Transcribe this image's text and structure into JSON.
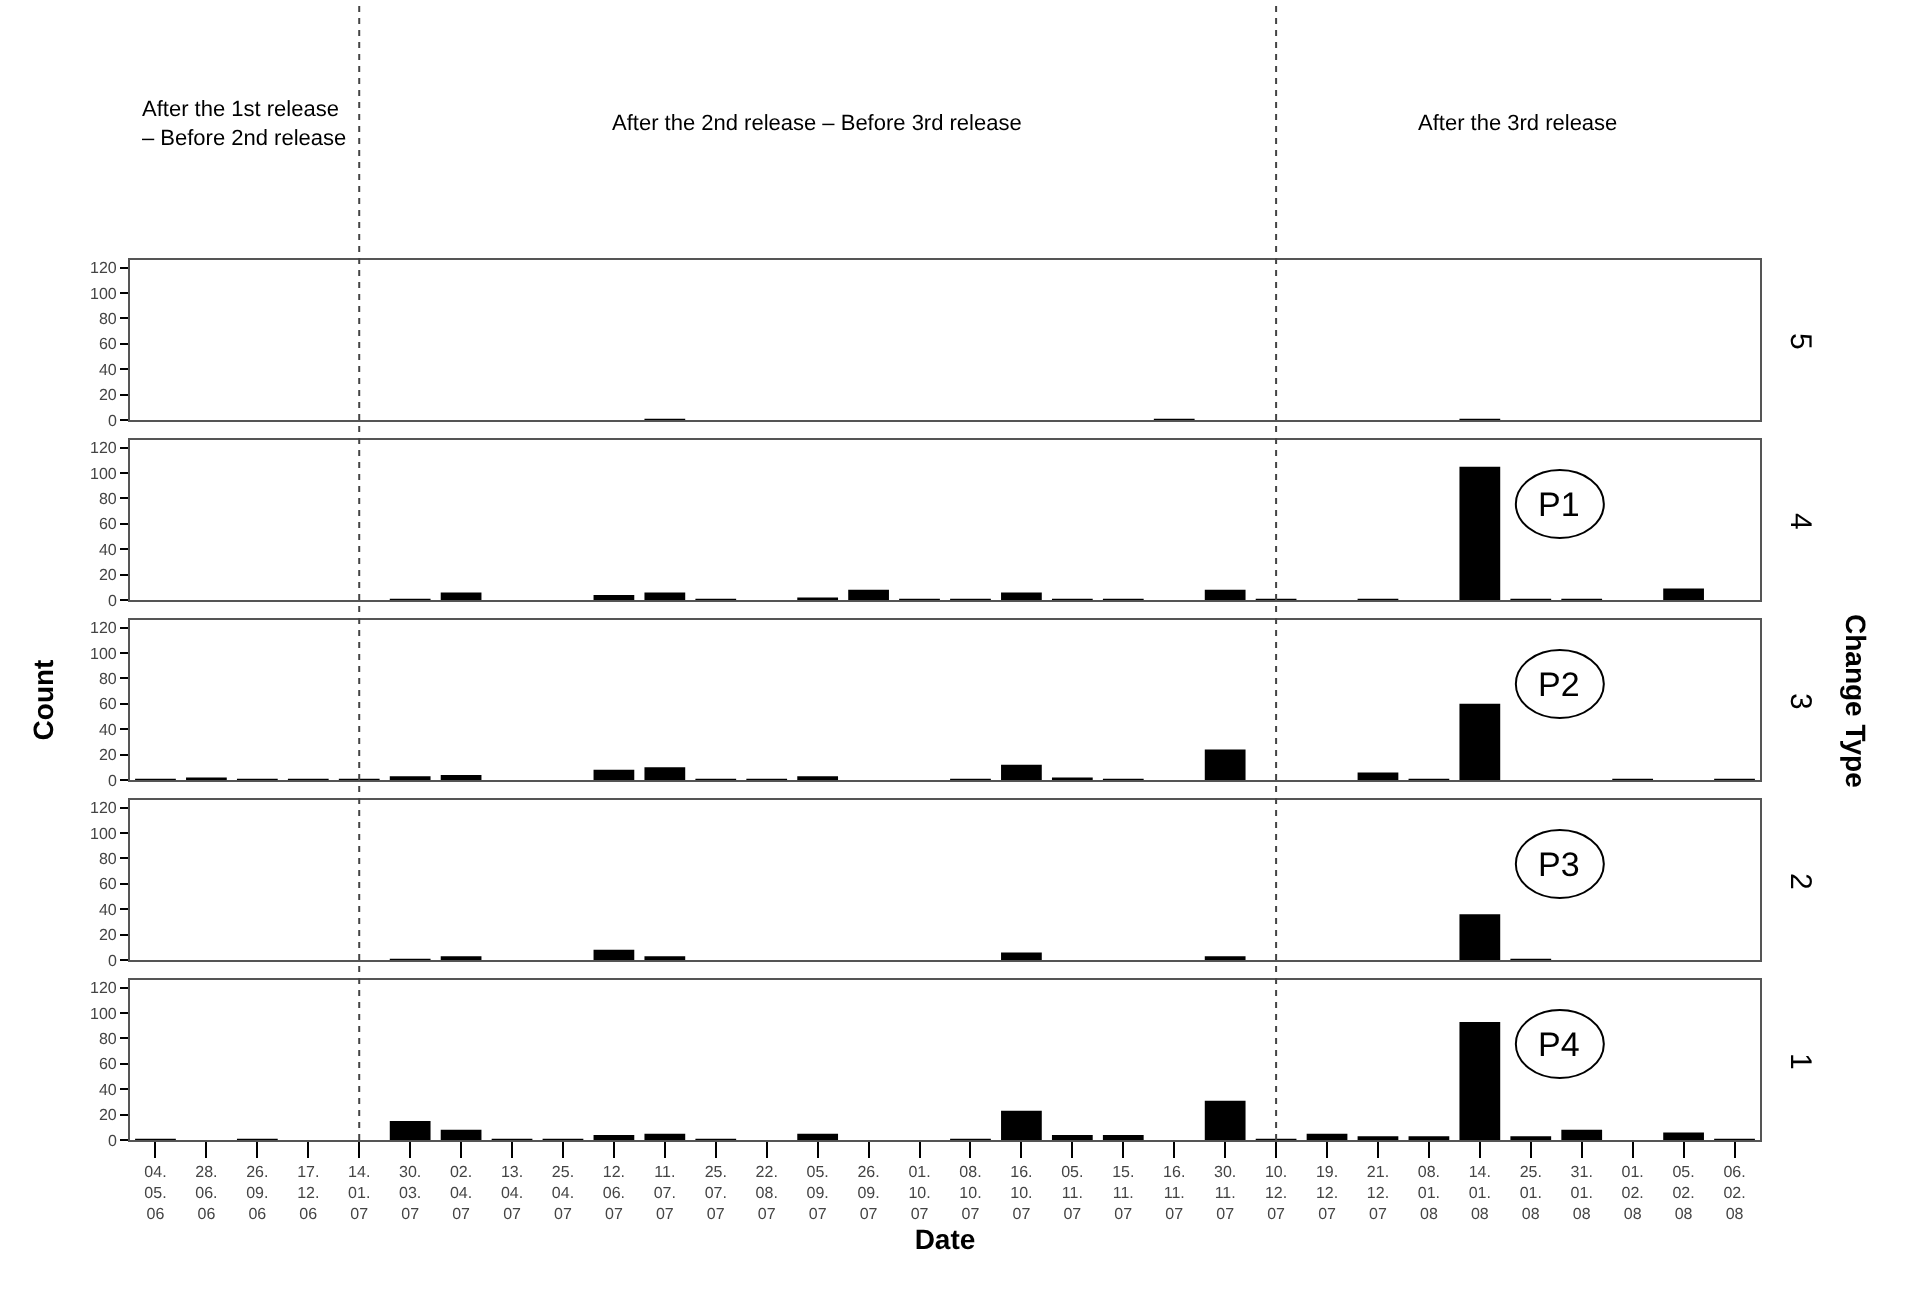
{
  "chart_data": [
    {
      "type": "bar",
      "y2label": "5",
      "color": "#000000",
      "tick_labels": "y",
      "ylim": [
        0,
        126
      ],
      "yticks": [
        0,
        20,
        40,
        60,
        80,
        100,
        120
      ],
      "categories": [
        "04.05.06",
        "28.06.06",
        "26.09.06",
        "17.12.06",
        "14.01.07",
        "30.03.07",
        "02.04.07",
        "13.04.07",
        "25.04.07",
        "12.06.07",
        "11.07.07",
        "25.07.07",
        "22.08.07",
        "05.09.07",
        "26.09.07",
        "01.10.07",
        "08.10.07",
        "16.10.07",
        "05.11.07",
        "15.11.07",
        "16.11.07",
        "30.11.07",
        "10.12.07",
        "19.12.07",
        "21.12.07",
        "08.01.08",
        "14.01.08",
        "25.01.08",
        "31.01.08",
        "01.02.08",
        "05.02.08",
        "06.02.08"
      ],
      "values": [
        0,
        0,
        0,
        0,
        0,
        0,
        0,
        0,
        0,
        0,
        1,
        0,
        0,
        0,
        0,
        0,
        0,
        0,
        0,
        0,
        1,
        0,
        0,
        0,
        0,
        0,
        1,
        0,
        0,
        0,
        0,
        0
      ],
      "annotations": [
        "After the 1st release\n– Before 2nd release",
        "After the 2nd release – Before 3rd release",
        "After the 3rd release"
      ],
      "ref_lines": [
        {
          "axis": "x",
          "value": "14.01.07",
          "line_style": "dotted"
        },
        {
          "axis": "x",
          "value": "10.12.07",
          "line_style": "dotted"
        }
      ]
    },
    {
      "type": "bar",
      "y2label": "4",
      "color": "#000000",
      "tick_labels": "y",
      "ylim": [
        0,
        126
      ],
      "yticks": [
        0,
        20,
        40,
        60,
        80,
        100,
        120
      ],
      "categories": [
        "04.05.06",
        "28.06.06",
        "26.09.06",
        "17.12.06",
        "14.01.07",
        "30.03.07",
        "02.04.07",
        "13.04.07",
        "25.04.07",
        "12.06.07",
        "11.07.07",
        "25.07.07",
        "22.08.07",
        "05.09.07",
        "26.09.07",
        "01.10.07",
        "08.10.07",
        "16.10.07",
        "05.11.07",
        "15.11.07",
        "16.11.07",
        "30.11.07",
        "10.12.07",
        "19.12.07",
        "21.12.07",
        "08.01.08",
        "14.01.08",
        "25.01.08",
        "31.01.08",
        "01.02.08",
        "05.02.08",
        "06.02.08"
      ],
      "values": [
        0,
        0,
        0,
        0,
        0,
        1,
        6,
        0,
        0,
        4,
        6,
        1,
        0,
        2,
        8,
        1,
        1,
        6,
        1,
        1,
        0,
        8,
        1,
        0,
        1,
        0,
        105,
        1,
        1,
        0,
        9,
        0
      ],
      "annotations": [
        "P1"
      ],
      "ref_lines": [
        {
          "axis": "x",
          "value": "14.01.07",
          "line_style": "dotted"
        },
        {
          "axis": "x",
          "value": "10.12.07",
          "line_style": "dotted"
        }
      ]
    },
    {
      "type": "bar",
      "y2label": "3",
      "ylabel": "Count",
      "color": "#000000",
      "tick_labels": "y",
      "ylim": [
        0,
        126
      ],
      "yticks": [
        0,
        20,
        40,
        60,
        80,
        100,
        120
      ],
      "categories": [
        "04.05.06",
        "28.06.06",
        "26.09.06",
        "17.12.06",
        "14.01.07",
        "30.03.07",
        "02.04.07",
        "13.04.07",
        "25.04.07",
        "12.06.07",
        "11.07.07",
        "25.07.07",
        "22.08.07",
        "05.09.07",
        "26.09.07",
        "01.10.07",
        "08.10.07",
        "16.10.07",
        "05.11.07",
        "15.11.07",
        "16.11.07",
        "30.11.07",
        "10.12.07",
        "19.12.07",
        "21.12.07",
        "08.01.08",
        "14.01.08",
        "25.01.08",
        "31.01.08",
        "01.02.08",
        "05.02.08",
        "06.02.08"
      ],
      "values": [
        1,
        2,
        1,
        1,
        1,
        3,
        4,
        0,
        0,
        8,
        10,
        1,
        1,
        3,
        0,
        0,
        1,
        12,
        2,
        1,
        0,
        24,
        0,
        0,
        6,
        1,
        60,
        0,
        0,
        1,
        0,
        1
      ],
      "annotations": [
        "P2",
        "Change Type"
      ],
      "ref_lines": [
        {
          "axis": "x",
          "value": "14.01.07",
          "line_style": "dotted"
        },
        {
          "axis": "x",
          "value": "10.12.07",
          "line_style": "dotted"
        }
      ]
    },
    {
      "type": "bar",
      "y2label": "2",
      "color": "#000000",
      "tick_labels": "y",
      "ylim": [
        0,
        126
      ],
      "yticks": [
        0,
        20,
        40,
        60,
        80,
        100,
        120
      ],
      "categories": [
        "04.05.06",
        "28.06.06",
        "26.09.06",
        "17.12.06",
        "14.01.07",
        "30.03.07",
        "02.04.07",
        "13.04.07",
        "25.04.07",
        "12.06.07",
        "11.07.07",
        "25.07.07",
        "22.08.07",
        "05.09.07",
        "26.09.07",
        "01.10.07",
        "08.10.07",
        "16.10.07",
        "05.11.07",
        "15.11.07",
        "16.11.07",
        "30.11.07",
        "10.12.07",
        "19.12.07",
        "21.12.07",
        "08.01.08",
        "14.01.08",
        "25.01.08",
        "31.01.08",
        "01.02.08",
        "05.02.08",
        "06.02.08"
      ],
      "values": [
        0,
        0,
        0,
        0,
        0,
        1,
        3,
        0,
        0,
        8,
        3,
        0,
        0,
        0,
        0,
        0,
        0,
        6,
        0,
        0,
        0,
        3,
        0,
        0,
        0,
        0,
        36,
        1,
        0,
        0,
        0,
        0
      ],
      "annotations": [
        "P3"
      ],
      "ref_lines": [
        {
          "axis": "x",
          "value": "14.01.07",
          "line_style": "dotted"
        },
        {
          "axis": "x",
          "value": "10.12.07",
          "line_style": "dotted"
        }
      ]
    },
    {
      "type": "bar",
      "y2label": "1",
      "xlabel": "Date",
      "color": "#000000",
      "ylim": [
        0,
        126
      ],
      "yticks": [
        0,
        20,
        40,
        60,
        80,
        100,
        120
      ],
      "categories": [
        "04.05.06",
        "28.06.06",
        "26.09.06",
        "17.12.06",
        "14.01.07",
        "30.03.07",
        "02.04.07",
        "13.04.07",
        "25.04.07",
        "12.06.07",
        "11.07.07",
        "25.07.07",
        "22.08.07",
        "05.09.07",
        "26.09.07",
        "01.10.07",
        "08.10.07",
        "16.10.07",
        "05.11.07",
        "15.11.07",
        "16.11.07",
        "30.11.07",
        "10.12.07",
        "19.12.07",
        "21.12.07",
        "08.01.08",
        "14.01.08",
        "25.01.08",
        "31.01.08",
        "01.02.08",
        "05.02.08",
        "06.02.08"
      ],
      "values": [
        1,
        0,
        1,
        0,
        0,
        15,
        8,
        1,
        1,
        4,
        5,
        1,
        0,
        5,
        0,
        0,
        1,
        23,
        4,
        4,
        0,
        31,
        1,
        5,
        3,
        3,
        93,
        3,
        8,
        0,
        6,
        1
      ],
      "annotations": [
        "P4"
      ],
      "ref_lines": [
        {
          "axis": "x",
          "value": "14.01.07",
          "line_style": "dotted"
        },
        {
          "axis": "x",
          "value": "10.12.07",
          "line_style": "dotted"
        }
      ]
    }
  ]
}
